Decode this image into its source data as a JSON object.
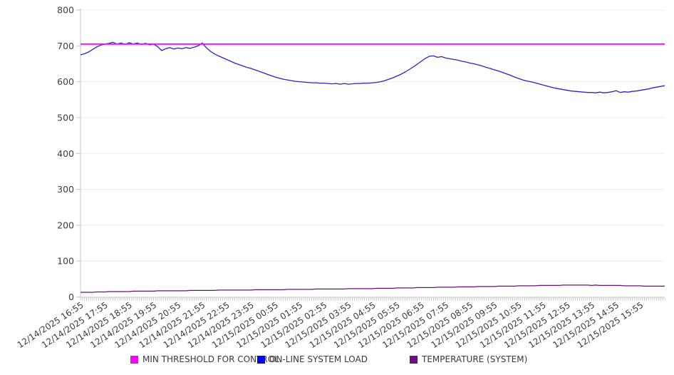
{
  "chart_data": {
    "type": "line",
    "title": "",
    "xlabel": "",
    "ylabel": "",
    "ylim": [
      0,
      800
    ],
    "y_ticks": [
      0,
      100,
      200,
      300,
      400,
      500,
      600,
      700,
      800
    ],
    "grid": "horizontal",
    "legend_position": "bottom",
    "x_range_minutes": [
      0,
      1440
    ],
    "sample_interval_minutes": 10,
    "minor_tick_interval_minutes": 5,
    "x_tick_interval_minutes": 60,
    "x_tick_labels": [
      "12/14/2025 16:55",
      "12/14/2025 17:55",
      "12/14/2025 18:55",
      "12/14/2025 19:55",
      "12/14/2025 20:55",
      "12/14/2025 21:55",
      "12/14/2025 22:55",
      "12/14/2025 23:55",
      "12/15/2025 00:55",
      "12/15/2025 01:55",
      "12/15/2025 02:55",
      "12/15/2025 03:55",
      "12/15/2025 04:55",
      "12/15/2025 05:55",
      "12/15/2025 06:55",
      "12/15/2025 07:55",
      "12/15/2025 08:55",
      "12/15/2025 09:55",
      "12/15/2025 10:55",
      "12/15/2025 11:55",
      "12/15/2025 12:55",
      "12/15/2025 13:55",
      "12/15/2025 14:55",
      "12/15/2025 15:55"
    ],
    "series": [
      {
        "name": "MIN THRESHOLD FOR CONTROL",
        "color": "#ff00ff",
        "type": "constant",
        "value": 705
      },
      {
        "name": "ON-LINE SYSTEM LOAD",
        "color": "#2626c9",
        "swatch_color": "#0000ff",
        "type": "line",
        "values": [
          675,
          678,
          683,
          690,
          697,
          702,
          705,
          707,
          710,
          705,
          708,
          704,
          709,
          705,
          708,
          704,
          707,
          703,
          705,
          698,
          687,
          692,
          695,
          691,
          694,
          692,
          695,
          693,
          696,
          700,
          708,
          695,
          685,
          678,
          672,
          667,
          662,
          657,
          652,
          648,
          644,
          640,
          637,
          633,
          629,
          625,
          621,
          617,
          613,
          610,
          607,
          605,
          603,
          601,
          600,
          599,
          598,
          597,
          597,
          596,
          596,
          595,
          594,
          595,
          593,
          595,
          593,
          594,
          595,
          595,
          596,
          596,
          597,
          598,
          600,
          603,
          607,
          611,
          616,
          621,
          627,
          634,
          641,
          649,
          657,
          665,
          671,
          672,
          668,
          670,
          666,
          664,
          662,
          660,
          657,
          655,
          652,
          650,
          647,
          644,
          640,
          637,
          633,
          630,
          626,
          622,
          618,
          613,
          609,
          605,
          602,
          600,
          597,
          594,
          591,
          588,
          585,
          582,
          580,
          578,
          576,
          574,
          573,
          572,
          571,
          570,
          570,
          569,
          571,
          569,
          570,
          572,
          575,
          570,
          572,
          571,
          573,
          574,
          576,
          578,
          580,
          583,
          585,
          587,
          589
        ]
      },
      {
        "name": "TEMPERATURE (SYSTEM)",
        "color": "#6e0d7e",
        "swatch_color": "#6e0d7e",
        "type": "line",
        "values": [
          13,
          13,
          13,
          13,
          14,
          14,
          14,
          15,
          15,
          15,
          15,
          15,
          15,
          16,
          16,
          16,
          16,
          16,
          16,
          17,
          17,
          17,
          17,
          17,
          17,
          17,
          17,
          18,
          18,
          18,
          18,
          18,
          18,
          18,
          19,
          19,
          19,
          19,
          19,
          19,
          19,
          19,
          19,
          20,
          20,
          20,
          20,
          20,
          20,
          20,
          20,
          21,
          21,
          21,
          21,
          21,
          21,
          21,
          22,
          22,
          22,
          22,
          22,
          22,
          22,
          22,
          23,
          23,
          23,
          23,
          23,
          23,
          23,
          24,
          24,
          24,
          24,
          24,
          25,
          25,
          25,
          25,
          25,
          26,
          26,
          26,
          26,
          26,
          27,
          27,
          27,
          27,
          27,
          28,
          28,
          28,
          28,
          28,
          29,
          29,
          29,
          29,
          29,
          30,
          30,
          30,
          30,
          30,
          31,
          31,
          31,
          31,
          31,
          32,
          32,
          32,
          32,
          32,
          32,
          33,
          33,
          33,
          33,
          33,
          33,
          33,
          32,
          33,
          32,
          32,
          32,
          32,
          32,
          32,
          31,
          31,
          31,
          31,
          31,
          30,
          30,
          30,
          30,
          30,
          30
        ]
      }
    ],
    "axis_text_color": "#3c3c3c",
    "grid_color": "#ebebeb",
    "axis_line_color": "#c6c6c6"
  }
}
